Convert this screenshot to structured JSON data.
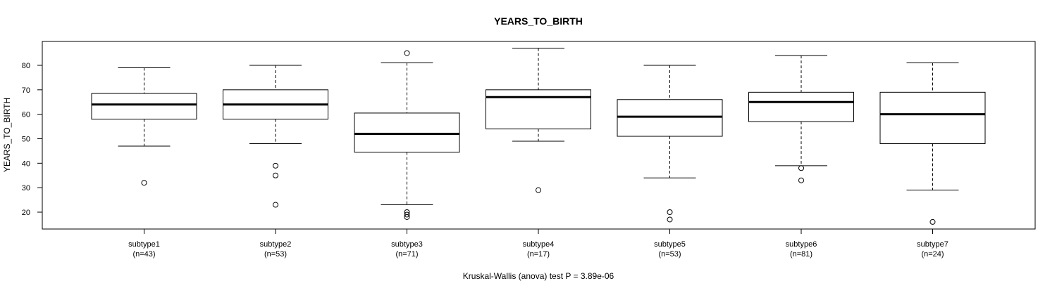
{
  "chart_data": {
    "type": "boxplot",
    "title": "YEARS_TO_BIRTH",
    "ylabel": "YEARS_TO_BIRTH",
    "xlabel": "",
    "subtitle": "Kruskal-Wallis (anova) test P = 3.89e-06",
    "ylim": [
      13,
      90
    ],
    "yticks": [
      20,
      30,
      40,
      50,
      60,
      70,
      80
    ],
    "grid": false,
    "legend": "none",
    "categories": [
      {
        "name": "subtype1",
        "n_label": "(n=43)",
        "whisker_low": 47,
        "q1": 58,
        "median": 64,
        "q3": 68.5,
        "whisker_high": 79,
        "outliers": [
          32
        ]
      },
      {
        "name": "subtype2",
        "n_label": "(n=53)",
        "whisker_low": 48,
        "q1": 58,
        "median": 64,
        "q3": 70,
        "whisker_high": 80,
        "outliers": [
          39,
          35,
          23
        ]
      },
      {
        "name": "subtype3",
        "n_label": "(n=71)",
        "whisker_low": 23,
        "q1": 44.5,
        "median": 52,
        "q3": 60.5,
        "whisker_high": 81,
        "outliers": [
          85,
          20,
          19,
          18
        ]
      },
      {
        "name": "subtype4",
        "n_label": "(n=17)",
        "whisker_low": 49,
        "q1": 54,
        "median": 67,
        "q3": 70,
        "whisker_high": 87,
        "outliers": [
          29
        ]
      },
      {
        "name": "subtype5",
        "n_label": "(n=53)",
        "whisker_low": 34,
        "q1": 51,
        "median": 59,
        "q3": 66,
        "whisker_high": 80,
        "outliers": [
          20,
          17
        ]
      },
      {
        "name": "subtype6",
        "n_label": "(n=81)",
        "whisker_low": 39,
        "q1": 57,
        "median": 65,
        "q3": 69,
        "whisker_high": 84,
        "outliers": [
          38,
          33
        ]
      },
      {
        "name": "subtype7",
        "n_label": "(n=24)",
        "whisker_low": 29,
        "q1": 48,
        "median": 60,
        "q3": 69,
        "whisker_high": 81,
        "outliers": [
          16
        ]
      }
    ]
  }
}
